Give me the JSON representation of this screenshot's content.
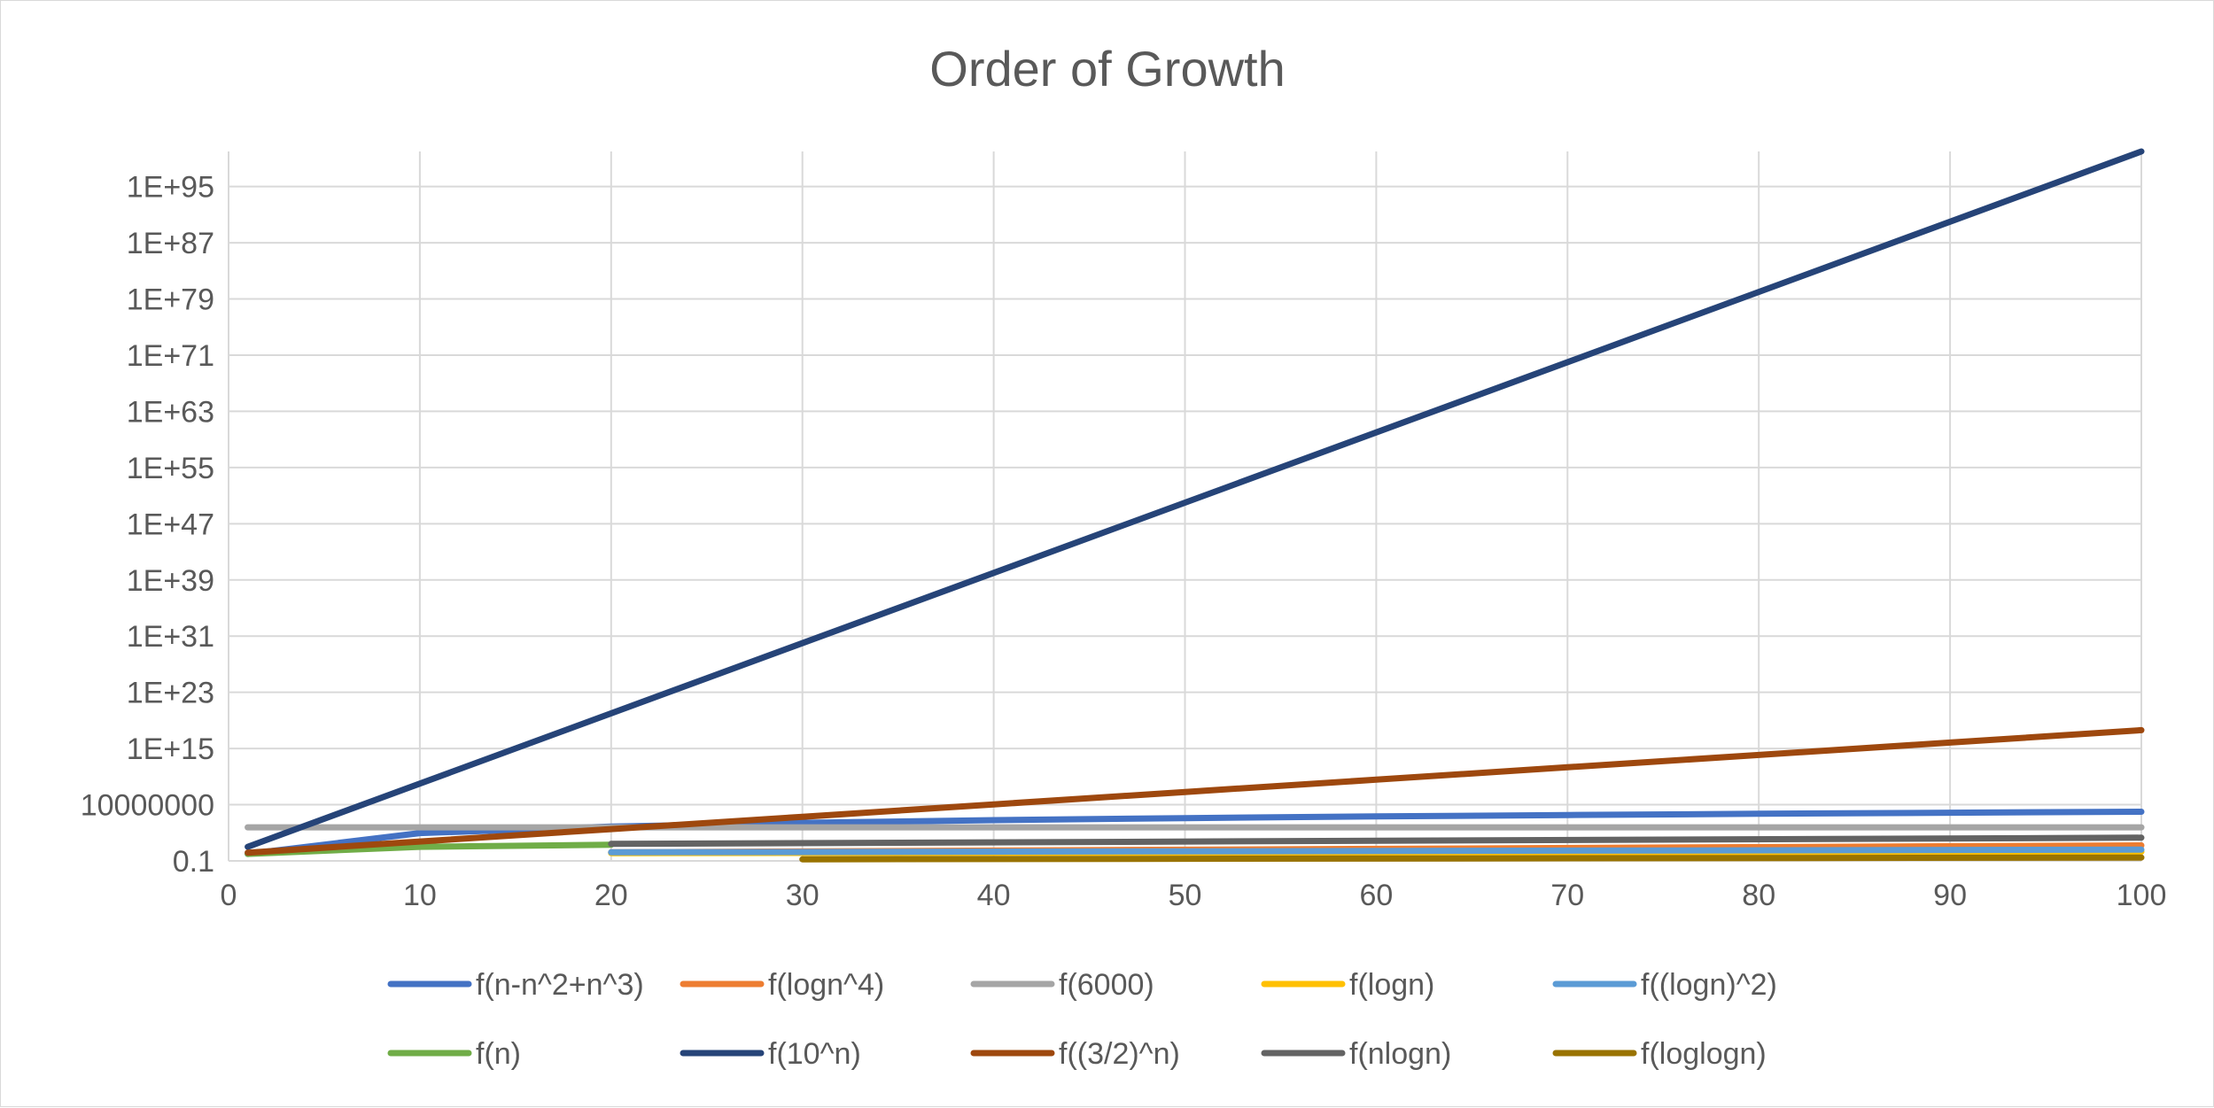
{
  "chart_data": {
    "type": "line",
    "title": "Order of Growth",
    "xlabel": "",
    "ylabel": "",
    "xlim": [
      0,
      100
    ],
    "y_scale": "log",
    "ylim": [
      "0.1",
      "1E+100"
    ],
    "x_ticks": [
      "0",
      "10",
      "20",
      "30",
      "40",
      "50",
      "60",
      "70",
      "80",
      "90",
      "100"
    ],
    "y_ticks": [
      "0.1",
      "10000000",
      "1E+15",
      "1E+23",
      "1E+31",
      "1E+39",
      "1E+47",
      "1E+55",
      "1E+63",
      "1E+71",
      "1E+79",
      "1E+87",
      "1E+95"
    ],
    "grid": true,
    "legend_position": "bottom",
    "series": [
      {
        "name": "f(n-n^2+n^3)",
        "color": "#4472C4",
        "x": [
          1,
          10,
          20,
          30,
          40,
          50,
          60,
          70,
          80,
          90,
          100
        ],
        "y": [
          "1",
          "910",
          "7620",
          "26130",
          "62440",
          "122550",
          "212460",
          "338170",
          "505680",
          "720990",
          "990100"
        ]
      },
      {
        "name": "f(logn^4)",
        "color": "#ED7D31",
        "x": [
          20,
          100
        ],
        "y": [
          "1.69",
          "16"
        ]
      },
      {
        "name": "f(6000)",
        "color": "#A5A5A5",
        "x": [
          1,
          100
        ],
        "y": [
          "6000",
          "6000"
        ]
      },
      {
        "name": "f(logn)",
        "color": "#FFC000",
        "x": [
          20,
          100
        ],
        "y": [
          "1.3",
          "2"
        ]
      },
      {
        "name": "f((logn)^2)",
        "color": "#5B9BD5",
        "x": [
          20,
          100
        ],
        "y": [
          "1.69",
          "4"
        ]
      },
      {
        "name": "f(n)",
        "color": "#70AD47",
        "x": [
          1,
          10,
          20
        ],
        "y": [
          "1",
          "10",
          "20"
        ]
      },
      {
        "name": "f(10^n)",
        "color": "#264478",
        "x": [
          1,
          100
        ],
        "y": [
          "1E+1",
          "1E+100"
        ]
      },
      {
        "name": "f((3/2)^n)",
        "color": "#9E480E",
        "x": [
          1,
          10,
          20,
          30,
          40,
          50,
          60,
          70,
          80,
          90,
          100
        ],
        "y": [
          "1.5",
          "57.7",
          "3325",
          "191751",
          "11057332",
          "637621500",
          "3.68E+10",
          "2.12E+12",
          "1.22E+14",
          "7.05E+15",
          "4.07E+17"
        ]
      },
      {
        "name": "f(nlogn)",
        "color": "#636363",
        "x": [
          20,
          100
        ],
        "y": [
          "26",
          "200"
        ]
      },
      {
        "name": "f(loglogn)",
        "color": "#997300",
        "x": [
          30,
          100
        ],
        "y": [
          "0.17",
          "0.3"
        ]
      }
    ]
  }
}
